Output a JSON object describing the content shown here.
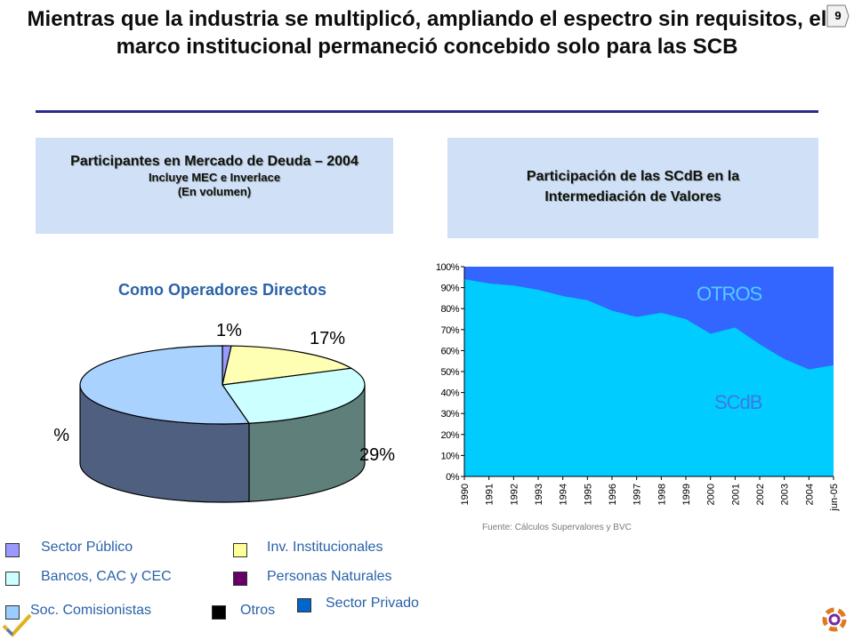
{
  "page": {
    "title": "Mientras que la industria se multiplicó, ampliando el espectro sin requisitos, el marco institucional permaneció concebido solo para las SCB",
    "page_number": "9"
  },
  "left_header": {
    "line1": "Participantes en Mercado de Deuda – 2004",
    "line2": "Incluye MEC e Inverlace",
    "line3": "(En volumen)"
  },
  "right_header": {
    "line1": "Participación de las SCdB en la Intermediación de Valores"
  },
  "pie_title": "Como Operadores Directos",
  "source": "Fuente: Cálculos Supervalores y BVC",
  "legend": [
    {
      "label": "Sector Público",
      "color": "#9999ff"
    },
    {
      "label": "Inv. Institucionales",
      "color": "#ffff99"
    },
    {
      "label": "Bancos, CAC y CEC",
      "color": "#ccffff"
    },
    {
      "label": "Personas Naturales",
      "color": "#660066"
    },
    {
      "label": "Soc. Comisionistas",
      "color": "#99ccff"
    },
    {
      "label": "Otros",
      "color": "#000000"
    },
    {
      "label": "Sector Privado",
      "color": "#0066cc"
    }
  ],
  "chart_data": [
    {
      "type": "pie",
      "title": "Como Operadores Directos",
      "slices": [
        {
          "label": "1%",
          "value": 1,
          "color": "#9999ff"
        },
        {
          "label": "17%",
          "value": 17,
          "color": "#ffffb3"
        },
        {
          "label": "29%",
          "value": 29,
          "color": "#ccffff"
        },
        {
          "label": "53%",
          "value": 53,
          "color": "#a9d2ff"
        }
      ]
    },
    {
      "type": "area",
      "stacked": true,
      "categories": [
        "1990",
        "1991",
        "1992",
        "1993",
        "1994",
        "1995",
        "1996",
        "1997",
        "1998",
        "1999",
        "2000",
        "2001",
        "2002",
        "2003",
        "2004",
        "jun-05"
      ],
      "series": [
        {
          "name": "SCdB",
          "values": [
            94,
            92,
            91,
            89,
            86,
            84,
            79,
            76,
            78,
            75,
            68,
            71,
            63,
            56,
            51,
            53
          ],
          "color": "#00ccff"
        },
        {
          "name": "OTROS",
          "values": [
            6,
            8,
            9,
            11,
            14,
            16,
            21,
            24,
            22,
            25,
            32,
            29,
            37,
            44,
            49,
            47
          ],
          "color": "#3366ff"
        }
      ],
      "yticks": [
        "0%",
        "10%",
        "20%",
        "30%",
        "40%",
        "50%",
        "60%",
        "70%",
        "80%",
        "90%",
        "100%"
      ],
      "ylim": [
        0,
        100
      ],
      "grid": false,
      "annotations": [
        "OTROS",
        "SCdB"
      ]
    }
  ]
}
